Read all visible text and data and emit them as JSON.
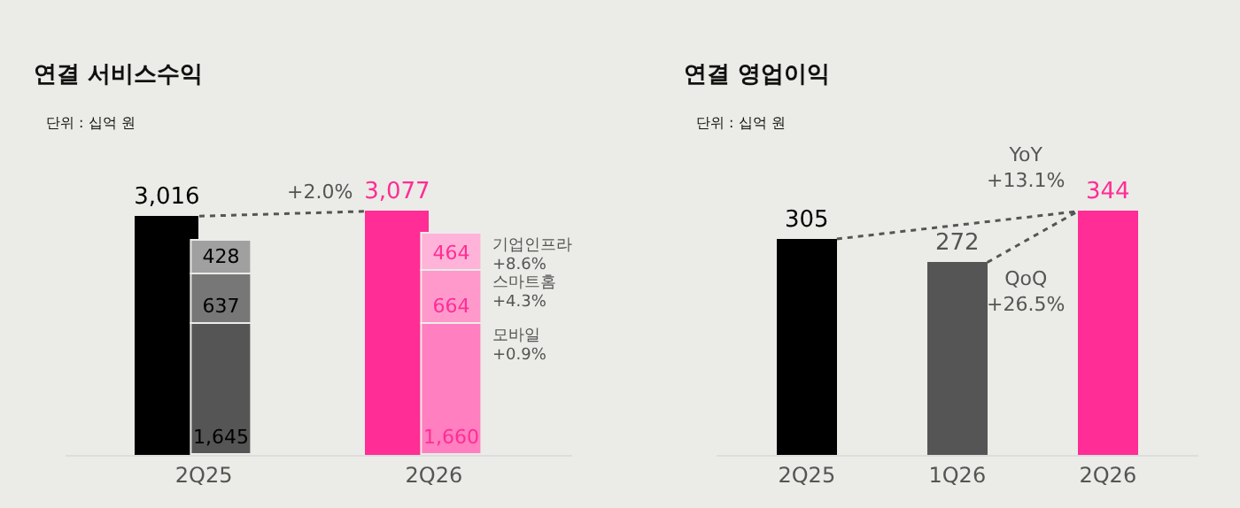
{
  "chart_data": [
    {
      "type": "bar",
      "title": "연결 서비스수익",
      "subtitle": "단위 : 십억 원",
      "categories": [
        "2Q25",
        "2Q26"
      ],
      "stacked": true,
      "legend": false,
      "series": [
        {
          "name": null,
          "axis": "y2",
          "colors": [
            "#000000",
            "#ff2d95"
          ],
          "values": [
            3016,
            3077
          ],
          "value_labels": [
            "3,016",
            "3,077"
          ]
        },
        {
          "name": "모바일",
          "colors": [
            "#555555",
            "#ff7fc0"
          ],
          "values": [
            1645,
            1660
          ],
          "value_labels": [
            "1,645",
            "1,660"
          ]
        },
        {
          "name": "스마트홈",
          "colors": [
            "#777777",
            "#ff99cc"
          ],
          "values": [
            637,
            664
          ],
          "value_labels": [
            "637",
            "664"
          ]
        },
        {
          "name": "기업인프라",
          "colors": [
            "#a0a0a0",
            "#ffb3d9"
          ],
          "values": [
            428,
            464
          ],
          "value_labels": [
            "428",
            "464"
          ]
        }
      ],
      "annotations": [
        "+2.0%",
        "+0.9%",
        "+4.3%",
        "+8.6%"
      ]
    },
    {
      "type": "bar",
      "title": "연결 영업이익",
      "subtitle": "단위 : 십억 원",
      "categories": [
        "2Q25",
        "1Q26",
        "2Q26"
      ],
      "data_labels": true,
      "legend": false,
      "series": [
        {
          "name": null,
          "colors": [
            "#000000",
            "#555555",
            "#ff2d95"
          ],
          "values": [
            305,
            272,
            344
          ]
        }
      ],
      "annotations": [
        "YoY\n+13.1%",
        "QoQ\n+26.5%"
      ]
    }
  ]
}
